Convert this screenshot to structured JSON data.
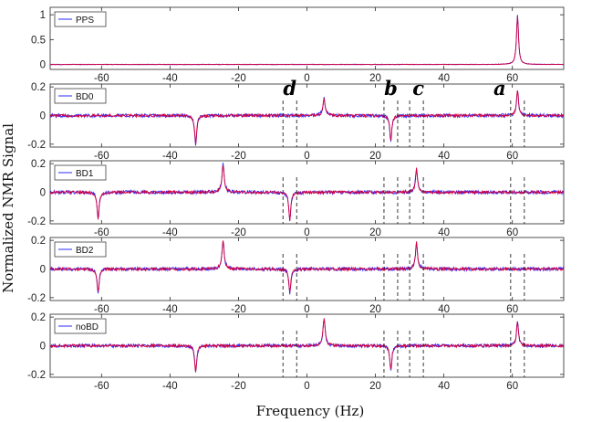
{
  "figure": {
    "ylabel": "Normalized NMR Signal",
    "xlabel": "Frequency (Hz)"
  },
  "colors": {
    "blue": "#2b2bff",
    "red": "#d6003c",
    "axis": "#262626",
    "marker": "#222222"
  },
  "chart_data": [
    {
      "type": "line",
      "name": "PPS",
      "legend": "PPS",
      "xlim": [
        -75,
        75
      ],
      "ylim": [
        -0.1,
        1.15
      ],
      "xticks": [
        -60,
        -40,
        -20,
        0,
        20,
        40,
        60
      ],
      "yticks": [
        0,
        0.5,
        1
      ],
      "ytick_labels": [
        "0",
        "0.5",
        "1"
      ],
      "peaks": [
        {
          "x": 61.5,
          "y": 1.0,
          "w": 0.35
        }
      ],
      "noise": 0.006,
      "series": [
        {
          "name": "blue",
          "color": "#2b2bff"
        },
        {
          "name": "red",
          "color": "#d6003c"
        }
      ]
    },
    {
      "type": "line",
      "name": "BD0",
      "legend": "BD0",
      "xlim": [
        -75,
        75
      ],
      "ylim": [
        -0.22,
        0.22
      ],
      "xticks": [
        -60,
        -40,
        -20,
        0,
        20,
        40,
        60
      ],
      "yticks": [
        -0.2,
        0,
        0.2
      ],
      "ytick_labels": [
        "-0.2",
        "0",
        "0.2"
      ],
      "peaks": [
        {
          "x": -32.5,
          "y": -0.2,
          "w": 0.35
        },
        {
          "x": 5.0,
          "y": 0.12,
          "w": 0.4
        },
        {
          "x": 24.5,
          "y": -0.18,
          "w": 0.35
        },
        {
          "x": 61.5,
          "y": 0.18,
          "w": 0.35
        }
      ],
      "noise": 0.012,
      "series": [
        {
          "name": "blue",
          "color": "#2b2bff"
        },
        {
          "name": "red",
          "color": "#d6003c"
        }
      ]
    },
    {
      "type": "line",
      "name": "BD1",
      "legend": "BD1",
      "xlim": [
        -75,
        75
      ],
      "ylim": [
        -0.22,
        0.22
      ],
      "xticks": [
        -60,
        -40,
        -20,
        0,
        20,
        40,
        60
      ],
      "yticks": [
        -0.2,
        0,
        0.2
      ],
      "ytick_labels": [
        "-0.2",
        "0",
        "0.2"
      ],
      "peaks": [
        {
          "x": -61.0,
          "y": -0.19,
          "w": 0.35
        },
        {
          "x": -24.5,
          "y": 0.2,
          "w": 0.4
        },
        {
          "x": -5.0,
          "y": -0.2,
          "w": 0.35
        },
        {
          "x": 32.0,
          "y": 0.17,
          "w": 0.35
        }
      ],
      "noise": 0.012,
      "series": [
        {
          "name": "blue",
          "color": "#2b2bff"
        },
        {
          "name": "red",
          "color": "#d6003c"
        }
      ]
    },
    {
      "type": "line",
      "name": "BD2",
      "legend": "BD2",
      "xlim": [
        -75,
        75
      ],
      "ylim": [
        -0.22,
        0.22
      ],
      "xticks": [
        -60,
        -40,
        -20,
        0,
        20,
        40,
        60
      ],
      "yticks": [
        -0.2,
        0,
        0.2
      ],
      "ytick_labels": [
        "-0.2",
        "0",
        "0.2"
      ],
      "peaks": [
        {
          "x": -61.0,
          "y": -0.17,
          "w": 0.35
        },
        {
          "x": -24.5,
          "y": 0.2,
          "w": 0.4
        },
        {
          "x": -5.0,
          "y": -0.17,
          "w": 0.35
        },
        {
          "x": 32.0,
          "y": 0.19,
          "w": 0.35
        }
      ],
      "noise": 0.012,
      "series": [
        {
          "name": "blue",
          "color": "#2b2bff"
        },
        {
          "name": "red",
          "color": "#d6003c"
        }
      ]
    },
    {
      "type": "line",
      "name": "noBD",
      "legend": "noBD",
      "xlim": [
        -75,
        75
      ],
      "ylim": [
        -0.22,
        0.22
      ],
      "xticks": [
        -60,
        -40,
        -20,
        0,
        20,
        40,
        60
      ],
      "yticks": [
        -0.2,
        0,
        0.2
      ],
      "ytick_labels": [
        "-0.2",
        "0",
        "0.2"
      ],
      "peaks": [
        {
          "x": -32.5,
          "y": -0.19,
          "w": 0.35
        },
        {
          "x": 5.0,
          "y": 0.19,
          "w": 0.4
        },
        {
          "x": 24.5,
          "y": -0.17,
          "w": 0.35
        },
        {
          "x": 61.5,
          "y": 0.17,
          "w": 0.35
        }
      ],
      "noise": 0.012,
      "series": [
        {
          "name": "blue",
          "color": "#2b2bff"
        },
        {
          "name": "red",
          "color": "#d6003c"
        }
      ]
    }
  ],
  "peak_windows": [
    {
      "label": "d",
      "x1": -7.0,
      "x2": -3.0
    },
    {
      "label": "b",
      "x1": 22.5,
      "x2": 26.5
    },
    {
      "label": "c",
      "x1": 30.0,
      "x2": 34.0
    },
    {
      "label": "a",
      "x1": 59.5,
      "x2": 63.5
    }
  ]
}
